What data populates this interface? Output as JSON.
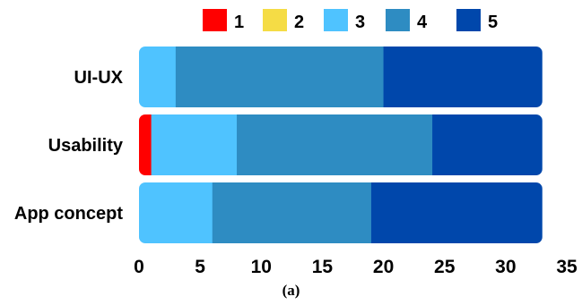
{
  "caption": "(a)",
  "chart_data": {
    "type": "bar",
    "orientation": "horizontal",
    "stacked": true,
    "categories": [
      "UI-UX",
      "Usability",
      "App concept"
    ],
    "series": [
      {
        "name": "1",
        "color": "#ff0000",
        "values": [
          0,
          1,
          0
        ]
      },
      {
        "name": "2",
        "color": "#f5dc45",
        "values": [
          0,
          0,
          0
        ]
      },
      {
        "name": "3",
        "color": "#4fc3ff",
        "values": [
          3,
          7,
          6
        ]
      },
      {
        "name": "4",
        "color": "#2e8cc2",
        "values": [
          17,
          16,
          13
        ]
      },
      {
        "name": "5",
        "color": "#0047ab",
        "values": [
          13,
          9,
          14
        ]
      }
    ],
    "xlim": [
      0,
      35
    ],
    "xticks": [
      "0",
      "5",
      "10",
      "15",
      "20",
      "25",
      "30",
      "35"
    ],
    "title": "",
    "xlabel": "",
    "ylabel": "",
    "grid": false,
    "legend_position": "top"
  }
}
